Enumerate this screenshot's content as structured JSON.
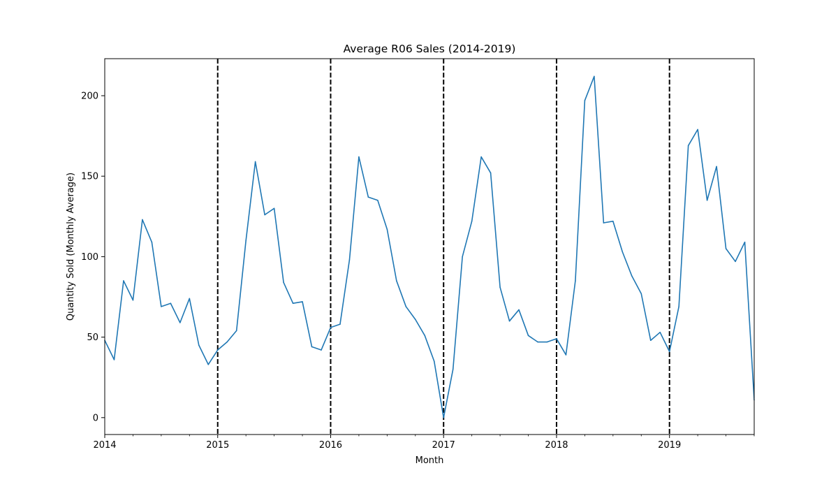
{
  "chart_data": {
    "type": "line",
    "title": "Average R06 Sales (2014-2019)",
    "xlabel": "Month",
    "ylabel": "Quantity Sold (Monthly Average)",
    "x_range": [
      "2014-01",
      "2019-10"
    ],
    "ylim": [
      -10.5,
      223
    ],
    "grid": false,
    "line_color": "#1f77b4",
    "marker_line_color": "#000000",
    "x_ticks": [
      {
        "date": "2014-01",
        "label": "2014"
      },
      {
        "date": "2015-01",
        "label": "2015"
      },
      {
        "date": "2016-01",
        "label": "2016"
      },
      {
        "date": "2017-01",
        "label": "2017"
      },
      {
        "date": "2018-01",
        "label": "2018"
      },
      {
        "date": "2019-01",
        "label": "2019"
      }
    ],
    "y_ticks": [
      0,
      50,
      100,
      150,
      200
    ],
    "vertical_lines": [
      "2015-01",
      "2016-01",
      "2017-01",
      "2018-01",
      "2019-01"
    ],
    "series": [
      {
        "x": [
          "2014-01",
          "2014-02",
          "2014-03",
          "2014-04",
          "2014-05",
          "2014-06",
          "2014-07",
          "2014-08",
          "2014-09",
          "2014-10",
          "2014-11",
          "2014-12",
          "2015-01",
          "2015-02",
          "2015-03",
          "2015-04",
          "2015-05",
          "2015-06",
          "2015-07",
          "2015-08",
          "2015-09",
          "2015-10",
          "2015-11",
          "2015-12",
          "2016-01",
          "2016-02",
          "2016-03",
          "2016-04",
          "2016-05",
          "2016-06",
          "2016-07",
          "2016-08",
          "2016-09",
          "2016-10",
          "2016-11",
          "2016-12",
          "2017-01",
          "2017-02",
          "2017-03",
          "2017-04",
          "2017-05",
          "2017-06",
          "2017-07",
          "2017-08",
          "2017-09",
          "2017-10",
          "2017-11",
          "2017-12",
          "2018-01",
          "2018-02",
          "2018-03",
          "2018-04",
          "2018-05",
          "2018-06",
          "2018-07",
          "2018-08",
          "2018-09",
          "2018-10",
          "2018-11",
          "2018-12",
          "2019-01",
          "2019-02",
          "2019-03",
          "2019-04",
          "2019-05",
          "2019-06",
          "2019-07",
          "2019-08",
          "2019-09",
          "2019-10"
        ],
        "values": [
          48,
          36,
          85,
          73,
          123,
          109,
          69,
          71,
          59,
          74,
          45,
          33,
          42,
          47,
          54,
          110,
          159,
          126,
          130,
          84,
          71,
          72,
          44,
          42,
          56,
          58,
          98,
          162,
          137,
          135,
          117,
          85,
          69,
          61,
          51,
          35,
          0,
          30,
          100,
          122,
          162,
          152,
          81,
          60,
          67,
          51,
          47,
          47,
          49,
          39,
          85,
          197,
          212,
          121,
          122,
          103,
          88,
          77,
          48,
          53,
          41,
          69,
          169,
          179,
          135,
          156,
          105,
          97,
          109,
          11
        ]
      }
    ]
  }
}
